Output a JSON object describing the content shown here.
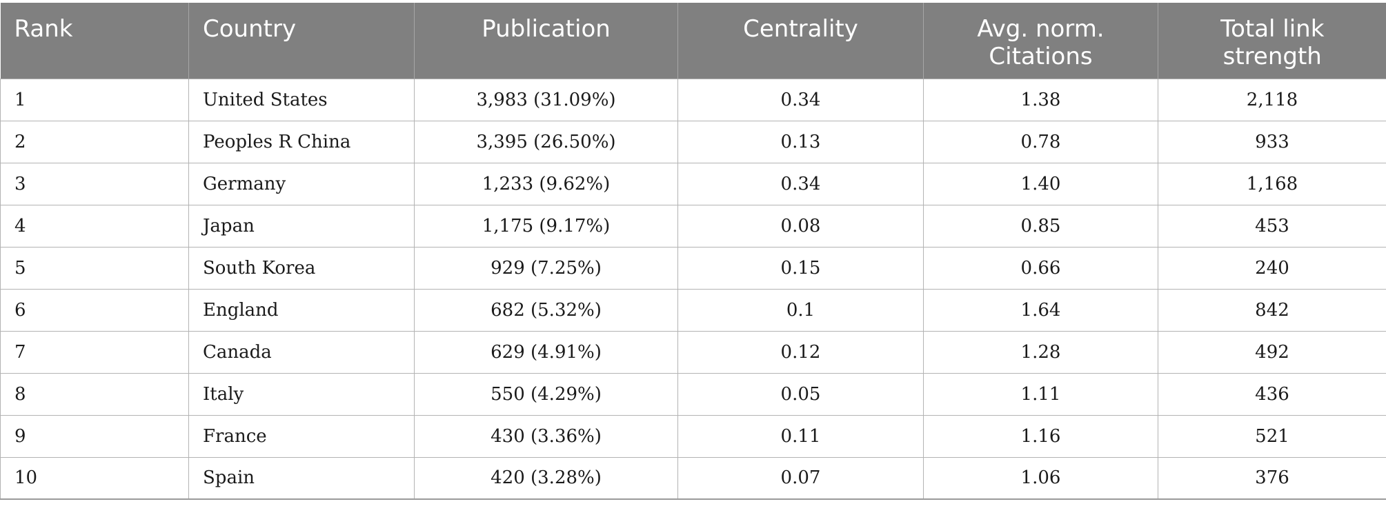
{
  "table": {
    "headers": {
      "rank": "Rank",
      "country": "Country",
      "publication": "Publication",
      "centrality": "Centrality",
      "citations_line1": "Avg. norm.",
      "citations_line2": "Citations",
      "link_line1": "Total link",
      "link_line2": "strength"
    },
    "rows": [
      {
        "rank": "1",
        "country": "United States",
        "publication": "3,983 (31.09%)",
        "centrality": "0.34",
        "citations": "1.38",
        "link_strength": "2,118"
      },
      {
        "rank": "2",
        "country": "Peoples R China",
        "publication": "3,395 (26.50%)",
        "centrality": "0.13",
        "citations": "0.78",
        "link_strength": "933"
      },
      {
        "rank": "3",
        "country": "Germany",
        "publication": "1,233 (9.62%)",
        "centrality": "0.34",
        "citations": "1.40",
        "link_strength": "1,168"
      },
      {
        "rank": "4",
        "country": "Japan",
        "publication": "1,175 (9.17%)",
        "centrality": "0.08",
        "citations": "0.85",
        "link_strength": "453"
      },
      {
        "rank": "5",
        "country": "South Korea",
        "publication": "929 (7.25%)",
        "centrality": "0.15",
        "citations": "0.66",
        "link_strength": "240"
      },
      {
        "rank": "6",
        "country": "England",
        "publication": "682 (5.32%)",
        "centrality": "0.1",
        "citations": "1.64",
        "link_strength": "842"
      },
      {
        "rank": "7",
        "country": "Canada",
        "publication": "629 (4.91%)",
        "centrality": "0.12",
        "citations": "1.28",
        "link_strength": "492"
      },
      {
        "rank": "8",
        "country": "Italy",
        "publication": "550 (4.29%)",
        "centrality": "0.05",
        "citations": "1.11",
        "link_strength": "436"
      },
      {
        "rank": "9",
        "country": "France",
        "publication": "430 (3.36%)",
        "centrality": "0.11",
        "citations": "1.16",
        "link_strength": "521"
      },
      {
        "rank": "10",
        "country": "Spain",
        "publication": "420 (3.28%)",
        "centrality": "0.07",
        "citations": "1.06",
        "link_strength": "376"
      }
    ]
  }
}
